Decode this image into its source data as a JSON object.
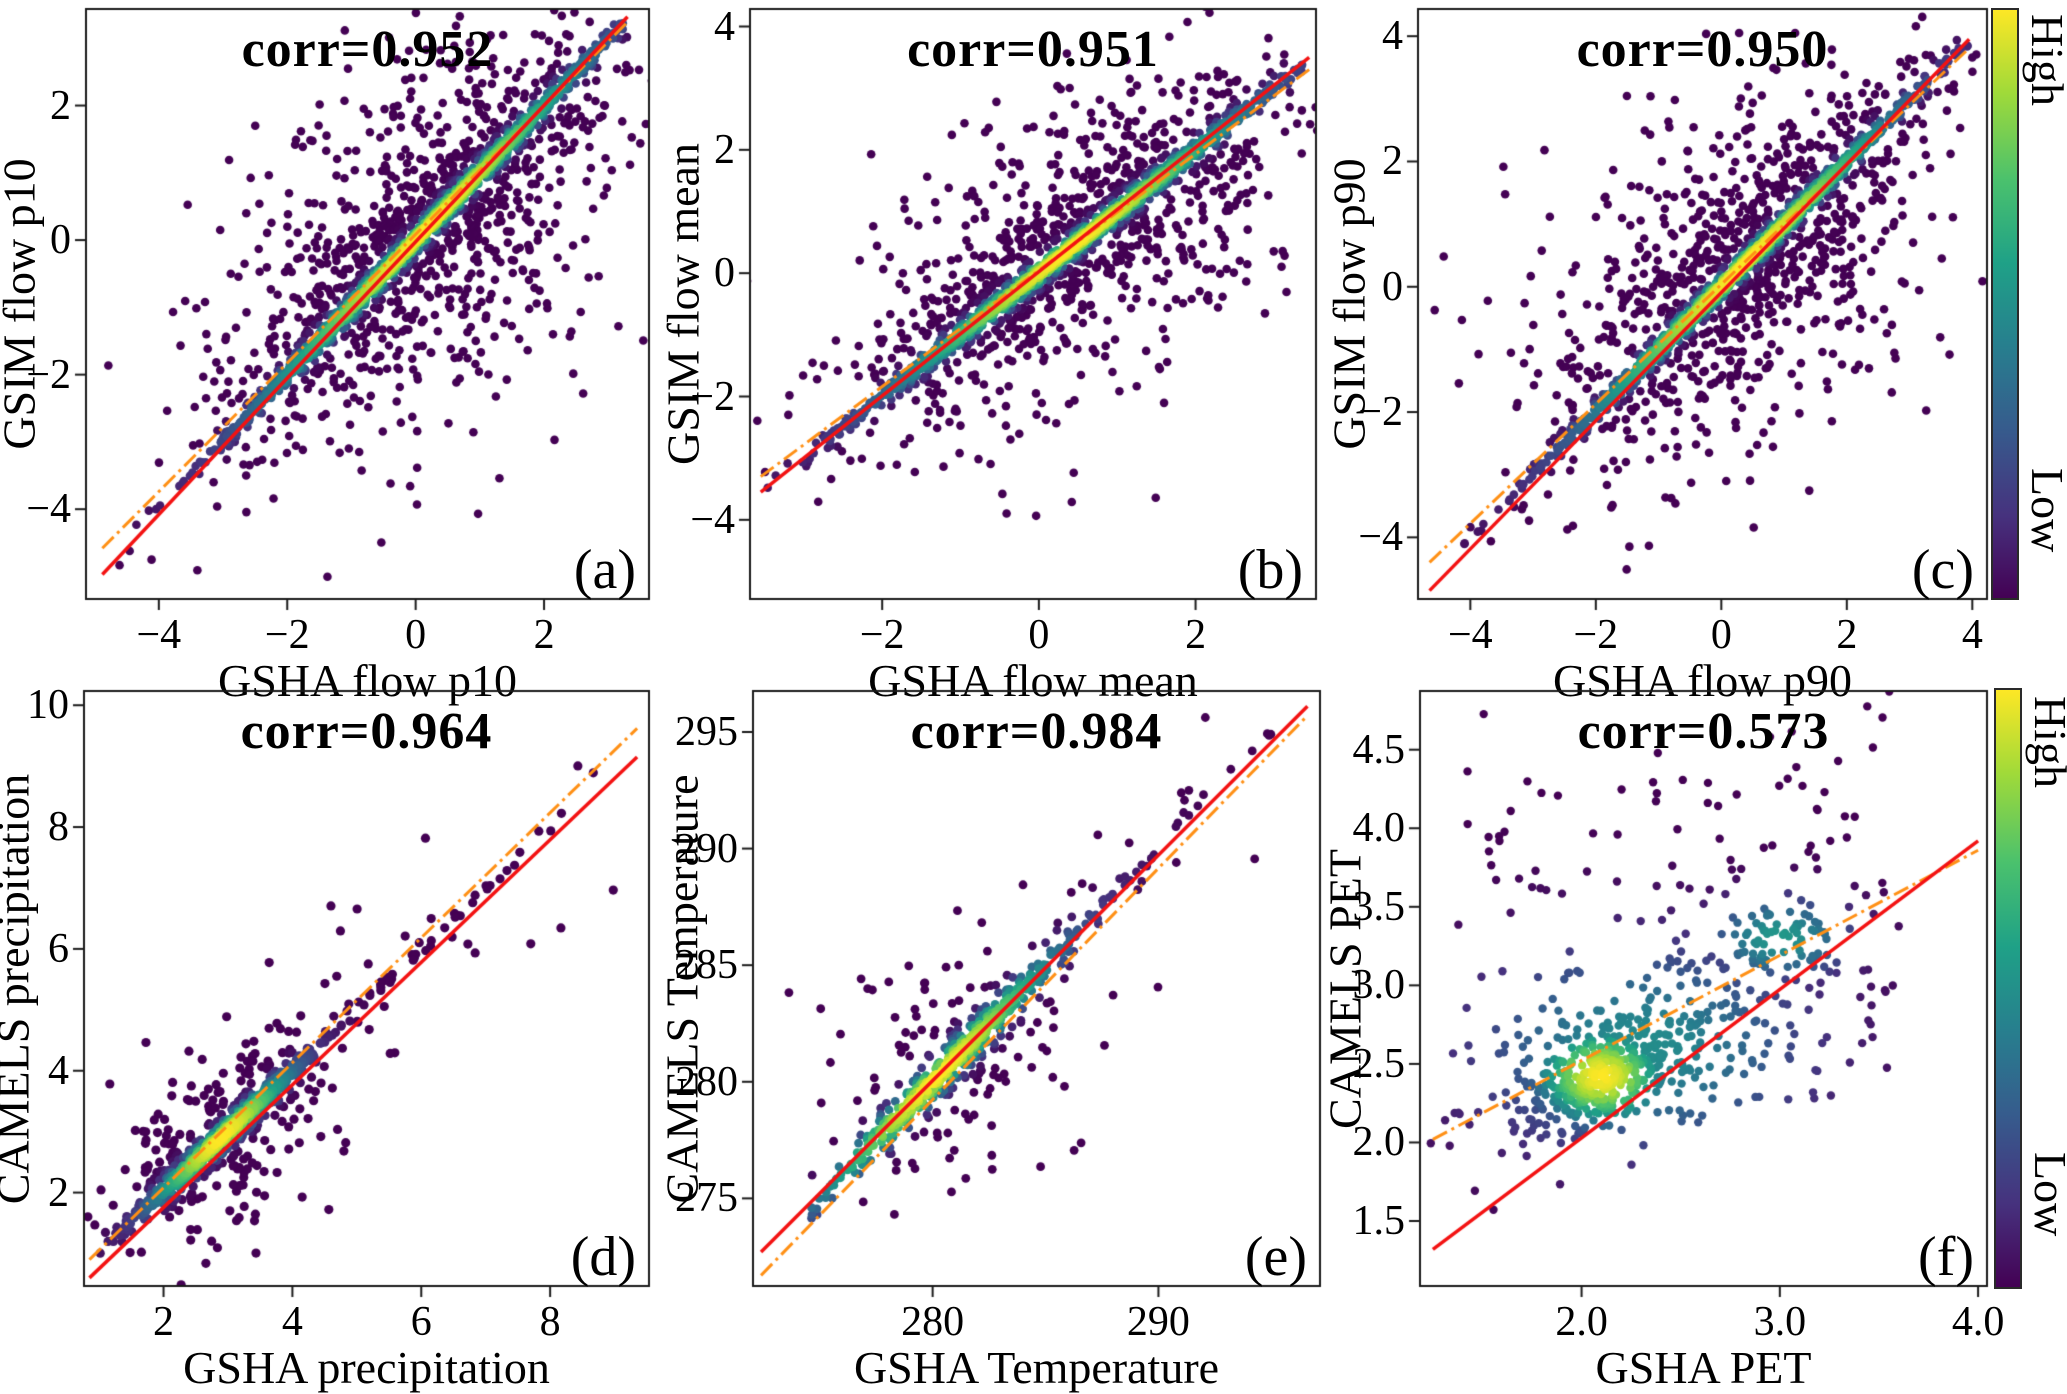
{
  "figure": {
    "background": "#ffffff"
  },
  "colorbars": {
    "label_high": "High",
    "label_low": "Low",
    "gradient_stops": [
      "#440154",
      "#46327e",
      "#365c8d",
      "#277f8e",
      "#1fa187",
      "#4ac16d",
      "#a0da39",
      "#fde725"
    ]
  },
  "chart_data": {
    "type": "scatter",
    "subtype": "density-colored scatter grid, viridis colormap, red 1:1 line and orange dash-dot fit line",
    "legend": {
      "high": "High",
      "low": "Low",
      "meaning": "point density"
    },
    "panels": [
      {
        "id": "a",
        "letter": "(a)",
        "title": "corr=0.952",
        "corr": 0.952,
        "xlabel": "GSHA flow p10",
        "ylabel": "GSIM flow p10",
        "xlim": [
          -5.15,
          3.65
        ],
        "ylim": [
          -5.35,
          3.45
        ],
        "xticks": [
          -4,
          -2,
          0,
          2
        ],
        "yticks": [
          -4,
          -2,
          0,
          2
        ],
        "tick_decimals": 0,
        "line_red": {
          "x": [
            -4.88,
            3.3
          ],
          "y": [
            -4.97,
            3.32
          ]
        },
        "line_orange": {
          "x": [
            -4.88,
            3.3
          ],
          "y": [
            -4.58,
            3.24
          ]
        },
        "scatter": {
          "kind": "diagonal",
          "n": 2700,
          "seed": 11,
          "t_mean": 0.15,
          "t_sigma": 1.5,
          "t_clip": [
            -4.85,
            3.25
          ],
          "core_frac": 0.55,
          "core_sigma": 0.05,
          "mid_frac": 0.2,
          "mid_sigma": 0.38,
          "out_sigma": 1.2,
          "d_tscale": 1.15,
          "dot_r": 4.3
        }
      },
      {
        "id": "b",
        "letter": "(b)",
        "title": "corr=0.951",
        "corr": 0.951,
        "xlabel": "GSHA flow mean",
        "ylabel": "GSIM flow mean",
        "xlim": [
          -3.7,
          3.55
        ],
        "ylim": [
          -5.3,
          4.3
        ],
        "xticks": [
          -2,
          0,
          2
        ],
        "yticks": [
          -4,
          -2,
          0,
          2,
          4
        ],
        "tick_decimals": 0,
        "line_red": {
          "x": [
            -3.55,
            3.45
          ],
          "y": [
            -3.55,
            3.5
          ]
        },
        "line_orange": {
          "x": [
            -3.55,
            3.45
          ],
          "y": [
            -3.3,
            3.3
          ]
        },
        "scatter": {
          "kind": "diagonal",
          "n": 2400,
          "seed": 22,
          "t_mean": 0.4,
          "t_sigma": 1.35,
          "t_clip": [
            -3.55,
            3.4
          ],
          "core_frac": 0.55,
          "core_sigma": 0.05,
          "mid_frac": 0.2,
          "mid_sigma": 0.4,
          "out_sigma": 1.05,
          "d_tscale": 1.15,
          "dot_r": 4.3
        }
      },
      {
        "id": "c",
        "letter": "(c)",
        "title": "corr=0.950",
        "corr": 0.95,
        "xlabel": "GSHA flow p90",
        "ylabel": "GSIM flow p90",
        "xlim": [
          -4.85,
          4.25
        ],
        "ylim": [
          -5.0,
          4.45
        ],
        "xticks": [
          -4,
          -2,
          0,
          2,
          4
        ],
        "yticks": [
          -4,
          -2,
          0,
          2,
          4
        ],
        "tick_decimals": 0,
        "line_red": {
          "x": [
            -4.65,
            3.95
          ],
          "y": [
            -4.85,
            3.95
          ]
        },
        "line_orange": {
          "x": [
            -4.65,
            3.92
          ],
          "y": [
            -4.4,
            3.78
          ]
        },
        "scatter": {
          "kind": "diagonal",
          "n": 2400,
          "seed": 33,
          "t_mean": 0.35,
          "t_sigma": 1.45,
          "t_clip": [
            -4.6,
            3.9
          ],
          "core_frac": 0.55,
          "core_sigma": 0.05,
          "mid_frac": 0.2,
          "mid_sigma": 0.42,
          "out_sigma": 1.25,
          "d_tscale": 1.15,
          "dot_r": 4.3
        }
      },
      {
        "id": "d",
        "letter": "(d)",
        "title": "corr=0.964",
        "corr": 0.964,
        "xlabel": "GSHA precipitation",
        "ylabel": "CAMELS precipitation",
        "xlim": [
          0.75,
          9.55
        ],
        "ylim": [
          0.45,
          10.25
        ],
        "xticks": [
          2,
          4,
          6,
          8
        ],
        "yticks": [
          2,
          4,
          6,
          8,
          10
        ],
        "tick_decimals": 0,
        "line_red": {
          "x": [
            0.85,
            9.35
          ],
          "y": [
            0.6,
            9.15
          ]
        },
        "line_orange": {
          "x": [
            0.85,
            9.35
          ],
          "y": [
            0.9,
            9.62
          ]
        },
        "scatter": {
          "kind": "diagonal",
          "n": 1000,
          "seed": 44,
          "t_mean": 2.9,
          "t_sigma": 0.72,
          "t_clip": [
            1.0,
            4.3
          ],
          "core_frac": 0.6,
          "core_sigma": 0.06,
          "mid_frac": 0.25,
          "mid_sigma": 0.3,
          "out_sigma": 0.8,
          "d_tscale": 1.0,
          "dot_r": 4.6,
          "t_mix_frac": 0.13,
          "t_mix_lo": 3.8,
          "t_mix_hi": 9.2
        }
      },
      {
        "id": "e",
        "letter": "(e)",
        "title": "corr=0.984",
        "corr": 0.984,
        "xlabel": "GSHA Temperature",
        "ylabel": "CAMELS Temperature",
        "xlim": [
          272.0,
          297.2
        ],
        "ylim": [
          271.2,
          296.8
        ],
        "xticks": [
          280,
          290
        ],
        "yticks": [
          275,
          280,
          285,
          290,
          295
        ],
        "tick_decimals": 0,
        "line_red": {
          "x": [
            272.4,
            296.6
          ],
          "y": [
            272.7,
            296.1
          ]
        },
        "line_orange": {
          "x": [
            272.4,
            296.6
          ],
          "y": [
            271.7,
            295.7
          ]
        },
        "scatter": {
          "kind": "diagonal",
          "n": 720,
          "seed": 55,
          "t_mean": 280.2,
          "t_sigma": 2.3,
          "t_clip": [
            272.8,
            296.3
          ],
          "core_frac": 0.62,
          "core_sigma": 0.22,
          "mid_frac": 0.2,
          "mid_sigma": 0.9,
          "out_sigma": 2.3,
          "d_tscale": 1.6,
          "dot_r": 4.4,
          "t_mix_frac": 0.3,
          "t_mix_lo": 281.0,
          "t_mix_hi": 296.2
        }
      },
      {
        "id": "f",
        "letter": "(f)",
        "title": "corr=0.573",
        "corr": 0.573,
        "xlabel": "GSHA PET",
        "ylabel": "CAMELS PET",
        "xlim": [
          1.18,
          4.05
        ],
        "ylim": [
          1.08,
          4.88
        ],
        "xticks": [
          2,
          3,
          4
        ],
        "yticks": [
          1.5,
          2.0,
          2.5,
          3.0,
          3.5,
          4.0,
          4.5
        ],
        "tick_decimals": 1,
        "line_red": {
          "x": [
            1.25,
            4.0
          ],
          "y": [
            1.32,
            3.92
          ]
        },
        "line_orange": {
          "x": [
            1.25,
            4.0
          ],
          "y": [
            2.02,
            3.86
          ]
        },
        "scatter": {
          "kind": "blob",
          "n": 800,
          "seed": 66,
          "dot_r": 4.2,
          "components": [
            {
              "frac": 0.4,
              "cx": 2.1,
              "cy": 2.42,
              "sx": 0.16,
              "sy": 0.15,
              "rho": 0.55,
              "peak": 1.0
            },
            {
              "frac": 0.27,
              "cx": 2.3,
              "cy": 2.6,
              "sx": 0.42,
              "sy": 0.33,
              "rho": 0.6,
              "peak": 0.45
            },
            {
              "frac": 0.09,
              "cx": 3.0,
              "cy": 3.3,
              "sx": 0.18,
              "sy": 0.13,
              "rho": 0.3,
              "peak": 0.5
            },
            {
              "frac": 0.24,
              "cx": 2.45,
              "cy": 3.2,
              "sx": 0.62,
              "sy": 0.62,
              "rho": 0.0,
              "peak": 0.0
            }
          ]
        }
      }
    ],
    "line_styles": {
      "red_color": "#f31212",
      "orange_color": "#ff9015",
      "red": "solid 1:1 line",
      "orange": "dash-dot fit line"
    }
  }
}
